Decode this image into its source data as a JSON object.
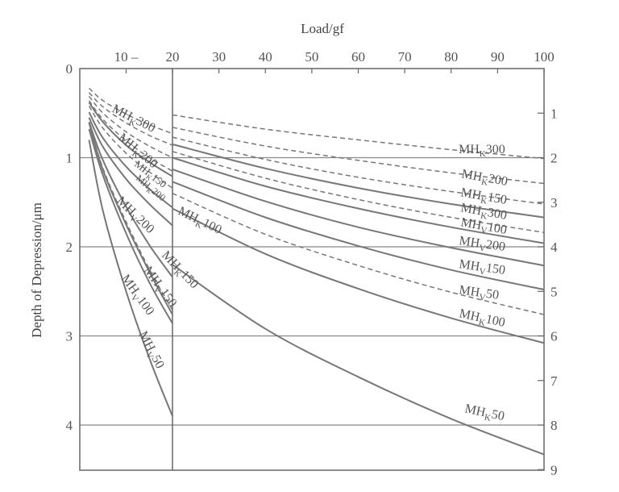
{
  "chart_data": {
    "type": "line",
    "xlabel": "Load/gf",
    "ylabel": "Depth of Depression/μm",
    "x_ticks": [
      {
        "value": 10,
        "label": "10 –"
      },
      {
        "value": 20,
        "label": "20"
      },
      {
        "value": 30,
        "label": "30"
      },
      {
        "value": 40,
        "label": "40"
      },
      {
        "value": 50,
        "label": "50"
      },
      {
        "value": 60,
        "label": "60"
      },
      {
        "value": 70,
        "label": "70"
      },
      {
        "value": 80,
        "label": "80"
      },
      {
        "value": 90,
        "label": "90"
      },
      {
        "value": 100,
        "label": "100"
      }
    ],
    "y_left_ticks": [
      0,
      1,
      2,
      3,
      4
    ],
    "y_right_ticks": [
      1,
      2,
      3,
      4,
      5,
      6,
      7,
      8,
      9
    ],
    "y_right_scale_note_values_per_left_unit": 2,
    "xlim": [
      0,
      100
    ],
    "ylim": [
      0,
      4.5
    ],
    "grid_lines_y": [
      1,
      2,
      3,
      4
    ],
    "left_panel": {
      "xlim": [
        0,
        20
      ],
      "series": [
        {
          "name": "MHK300",
          "base": "MH",
          "sub": "K",
          "num": "300",
          "style": "dashed",
          "x": [
            2,
            5,
            10,
            15,
            20
          ],
          "y": [
            0.22,
            0.36,
            0.51,
            0.63,
            0.73
          ]
        },
        {
          "name": "MHK200",
          "base": "MH",
          "sub": "K",
          "num": "200",
          "style": "dashed",
          "x": [
            2,
            5,
            10,
            15,
            20
          ],
          "y": [
            0.27,
            0.43,
            0.61,
            0.75,
            0.86
          ]
        },
        {
          "name": "MHK150",
          "base": "MH",
          "sub": "K",
          "num": "150",
          "style": "dashed",
          "x": [
            2,
            5,
            10,
            15,
            20
          ],
          "y": [
            0.31,
            0.5,
            0.71,
            0.87,
            1.0
          ]
        },
        {
          "name": "MHK200",
          "base": "MH",
          "sub": "K",
          "num": "200",
          "style": "dashed",
          "x": [
            2,
            5,
            10,
            15,
            20
          ],
          "y": [
            0.36,
            0.57,
            0.81,
            1.0,
            1.15
          ]
        },
        {
          "name": "MHK100",
          "base": "MH",
          "sub": "K",
          "num": "100",
          "style": "solid",
          "x": [
            2,
            5,
            10,
            15,
            20
          ],
          "y": [
            0.38,
            0.6,
            0.86,
            1.05,
            1.21
          ]
        },
        {
          "name": "MHV200",
          "base": "MH",
          "sub": "V",
          "num": "200",
          "style": "dashed",
          "x": [
            2,
            5,
            10,
            15,
            20
          ],
          "y": [
            0.42,
            0.67,
            0.95,
            1.16,
            1.34
          ]
        },
        {
          "name": "MHV200",
          "base": "MH",
          "sub": "V",
          "num": "200",
          "style": "solid",
          "x": [
            2,
            5,
            10,
            15,
            20
          ],
          "y": [
            0.49,
            0.78,
            1.1,
            1.35,
            1.56
          ]
        },
        {
          "name": "MHK150",
          "base": "MH",
          "sub": "K",
          "num": "150",
          "style": "solid",
          "x": [
            2,
            5,
            10,
            15,
            20
          ],
          "y": [
            0.55,
            0.88,
            1.24,
            1.52,
            1.76
          ]
        },
        {
          "name": "MHV150",
          "base": "MH",
          "sub": "V",
          "num": "150",
          "style": "dashed",
          "x": [
            2,
            5,
            10,
            15,
            20
          ],
          "y": [
            0.6,
            1.12,
            1.72,
            2.25,
            2.71
          ]
        },
        {
          "name": "MHV150",
          "base": "MH",
          "sub": "V",
          "num": "150",
          "style": "solid",
          "x": [
            2,
            5,
            10,
            15,
            20
          ],
          "y": [
            0.61,
            1.14,
            1.75,
            2.28,
            2.76
          ]
        },
        {
          "name": "MHK50",
          "base": "MH",
          "sub": "K",
          "num": "50",
          "style": "solid",
          "x": [
            2,
            5,
            10,
            15,
            20
          ],
          "y": [
            0.6,
            1.03,
            1.55,
            1.98,
            2.34
          ]
        },
        {
          "name": "MHV100",
          "base": "MH",
          "sub": "V",
          "num": "100",
          "style": "solid",
          "x": [
            2,
            5,
            10,
            15,
            20
          ],
          "y": [
            0.68,
            1.2,
            1.85,
            2.4,
            2.86
          ]
        },
        {
          "name": "MHV50",
          "base": "MH",
          "sub": "V",
          "num": "50",
          "style": "solid",
          "x": [
            2,
            5,
            10,
            15,
            20
          ],
          "y": [
            0.8,
            1.6,
            2.5,
            3.25,
            3.9
          ]
        }
      ]
    },
    "right_panel": {
      "xlim": [
        20,
        100
      ],
      "series": [
        {
          "name": "MHK300",
          "base": "MH",
          "sub": "K",
          "num": "300",
          "style": "dashed",
          "x": [
            20,
            40,
            60,
            80,
            100
          ],
          "y": [
            0.52,
            0.68,
            0.8,
            0.91,
            1.01
          ]
        },
        {
          "name": "MHK200",
          "base": "MH",
          "sub": "K",
          "num": "200",
          "style": "dashed",
          "x": [
            20,
            40,
            60,
            80,
            100
          ],
          "y": [
            0.66,
            0.87,
            1.03,
            1.17,
            1.29
          ]
        },
        {
          "name": "MHK150",
          "base": "MH",
          "sub": "K",
          "num": "150",
          "style": "dashed",
          "x": [
            20,
            40,
            60,
            80,
            100
          ],
          "y": [
            0.77,
            1.02,
            1.22,
            1.38,
            1.52
          ]
        },
        {
          "name": "MHK300",
          "base": "MH",
          "sub": "K",
          "num": "300",
          "style": "solid",
          "x": [
            20,
            40,
            60,
            80,
            100
          ],
          "y": [
            0.85,
            1.12,
            1.34,
            1.52,
            1.67
          ]
        },
        {
          "name": "MHV100",
          "base": "MH",
          "sub": "V",
          "num": "100",
          "style": "dashed",
          "x": [
            20,
            40,
            60,
            80,
            100
          ],
          "y": [
            0.93,
            1.23,
            1.47,
            1.67,
            1.84
          ]
        },
        {
          "name": "MHK200",
          "base": "MH",
          "sub": "K",
          "num": "200",
          "style": "solid",
          "x": [
            20,
            40,
            60,
            80,
            100
          ],
          "y": [
            1.0,
            1.32,
            1.57,
            1.78,
            1.96
          ]
        },
        {
          "name": "MHV200",
          "base": "MH",
          "sub": "V",
          "num": "200",
          "style": "solid",
          "x": [
            20,
            40,
            60,
            80,
            100
          ],
          "y": [
            1.13,
            1.49,
            1.78,
            2.01,
            2.21
          ]
        },
        {
          "name": "MHV150",
          "base": "MH",
          "sub": "V",
          "num": "150",
          "style": "solid",
          "x": [
            20,
            40,
            60,
            80,
            100
          ],
          "y": [
            1.27,
            1.67,
            1.99,
            2.26,
            2.48
          ]
        },
        {
          "name": "MHV50",
          "base": "MH",
          "sub": "V",
          "num": "50",
          "style": "dashed",
          "x": [
            20,
            40,
            60,
            80,
            100
          ],
          "y": [
            1.4,
            1.86,
            2.21,
            2.51,
            2.76
          ]
        },
        {
          "name": "MHK100",
          "base": "MH",
          "sub": "K",
          "num": "100",
          "style": "solid",
          "x": [
            20,
            40,
            60,
            80,
            100
          ],
          "y": [
            1.57,
            2.08,
            2.47,
            2.8,
            3.08
          ]
        },
        {
          "name": "MHK50",
          "base": "MH",
          "sub": "K",
          "num": "50",
          "style": "solid",
          "x": [
            20,
            40,
            60,
            80,
            100
          ],
          "y": [
            2.2,
            2.92,
            3.46,
            3.93,
            4.33
          ]
        }
      ]
    },
    "curve_labels": [
      {
        "id": "lbl-mhk300-left",
        "base": "MH",
        "sub": "K",
        "num": "300"
      },
      {
        "id": "lbl-mhk200-left",
        "base": "MH",
        "sub": "K",
        "num": "200"
      },
      {
        "id": "lbl-mhk150-left",
        "base": "MH",
        "sub": "K",
        "num": "150"
      },
      {
        "id": "lbl-mhk200-left-small",
        "base": "MH",
        "sub": "K",
        "num": "200"
      },
      {
        "id": "lbl-mhv200-left",
        "base": "MH",
        "sub": "V",
        "num": "200"
      },
      {
        "id": "lbl-mhk100-mid",
        "base": "MH",
        "sub": "K",
        "num": "100"
      },
      {
        "id": "lbl-mhk150-mid",
        "base": "MH",
        "sub": "K",
        "num": "150"
      },
      {
        "id": "lbl-mhv150-left",
        "base": "MH",
        "sub": "V",
        "num": "150"
      },
      {
        "id": "lbl-mhv100-left",
        "base": "MH",
        "sub": "V",
        "num": "100"
      },
      {
        "id": "lbl-mhv50-left",
        "base": "MH",
        "sub": "V",
        "num": "50"
      },
      {
        "id": "lbl-mhk300-right",
        "base": "MH",
        "sub": "K",
        "num": "300"
      },
      {
        "id": "lbl-mhk200-right",
        "base": "MH",
        "sub": "K",
        "num": "200"
      },
      {
        "id": "lbl-mhk150-right",
        "base": "MH",
        "sub": "K",
        "num": "150"
      },
      {
        "id": "lbl-mhk300-right2",
        "base": "MH",
        "sub": "K",
        "num": "300"
      },
      {
        "id": "lbl-mhv100-right",
        "base": "MH",
        "sub": "V",
        "num": "100"
      },
      {
        "id": "lbl-mhv200-right",
        "base": "MH",
        "sub": "V",
        "num": "200"
      },
      {
        "id": "lbl-mhv150-right",
        "base": "MH",
        "sub": "V",
        "num": "150"
      },
      {
        "id": "lbl-mhv50-right",
        "base": "MH",
        "sub": "V",
        "num": "50"
      },
      {
        "id": "lbl-mhk100-right",
        "base": "MH",
        "sub": "K",
        "num": "100"
      },
      {
        "id": "lbl-mhk50-right",
        "base": "MH",
        "sub": "K",
        "num": "50"
      }
    ],
    "colors": {
      "line": "#777777",
      "grid": "#888888",
      "frame": "#666666",
      "text": "#555555"
    }
  }
}
